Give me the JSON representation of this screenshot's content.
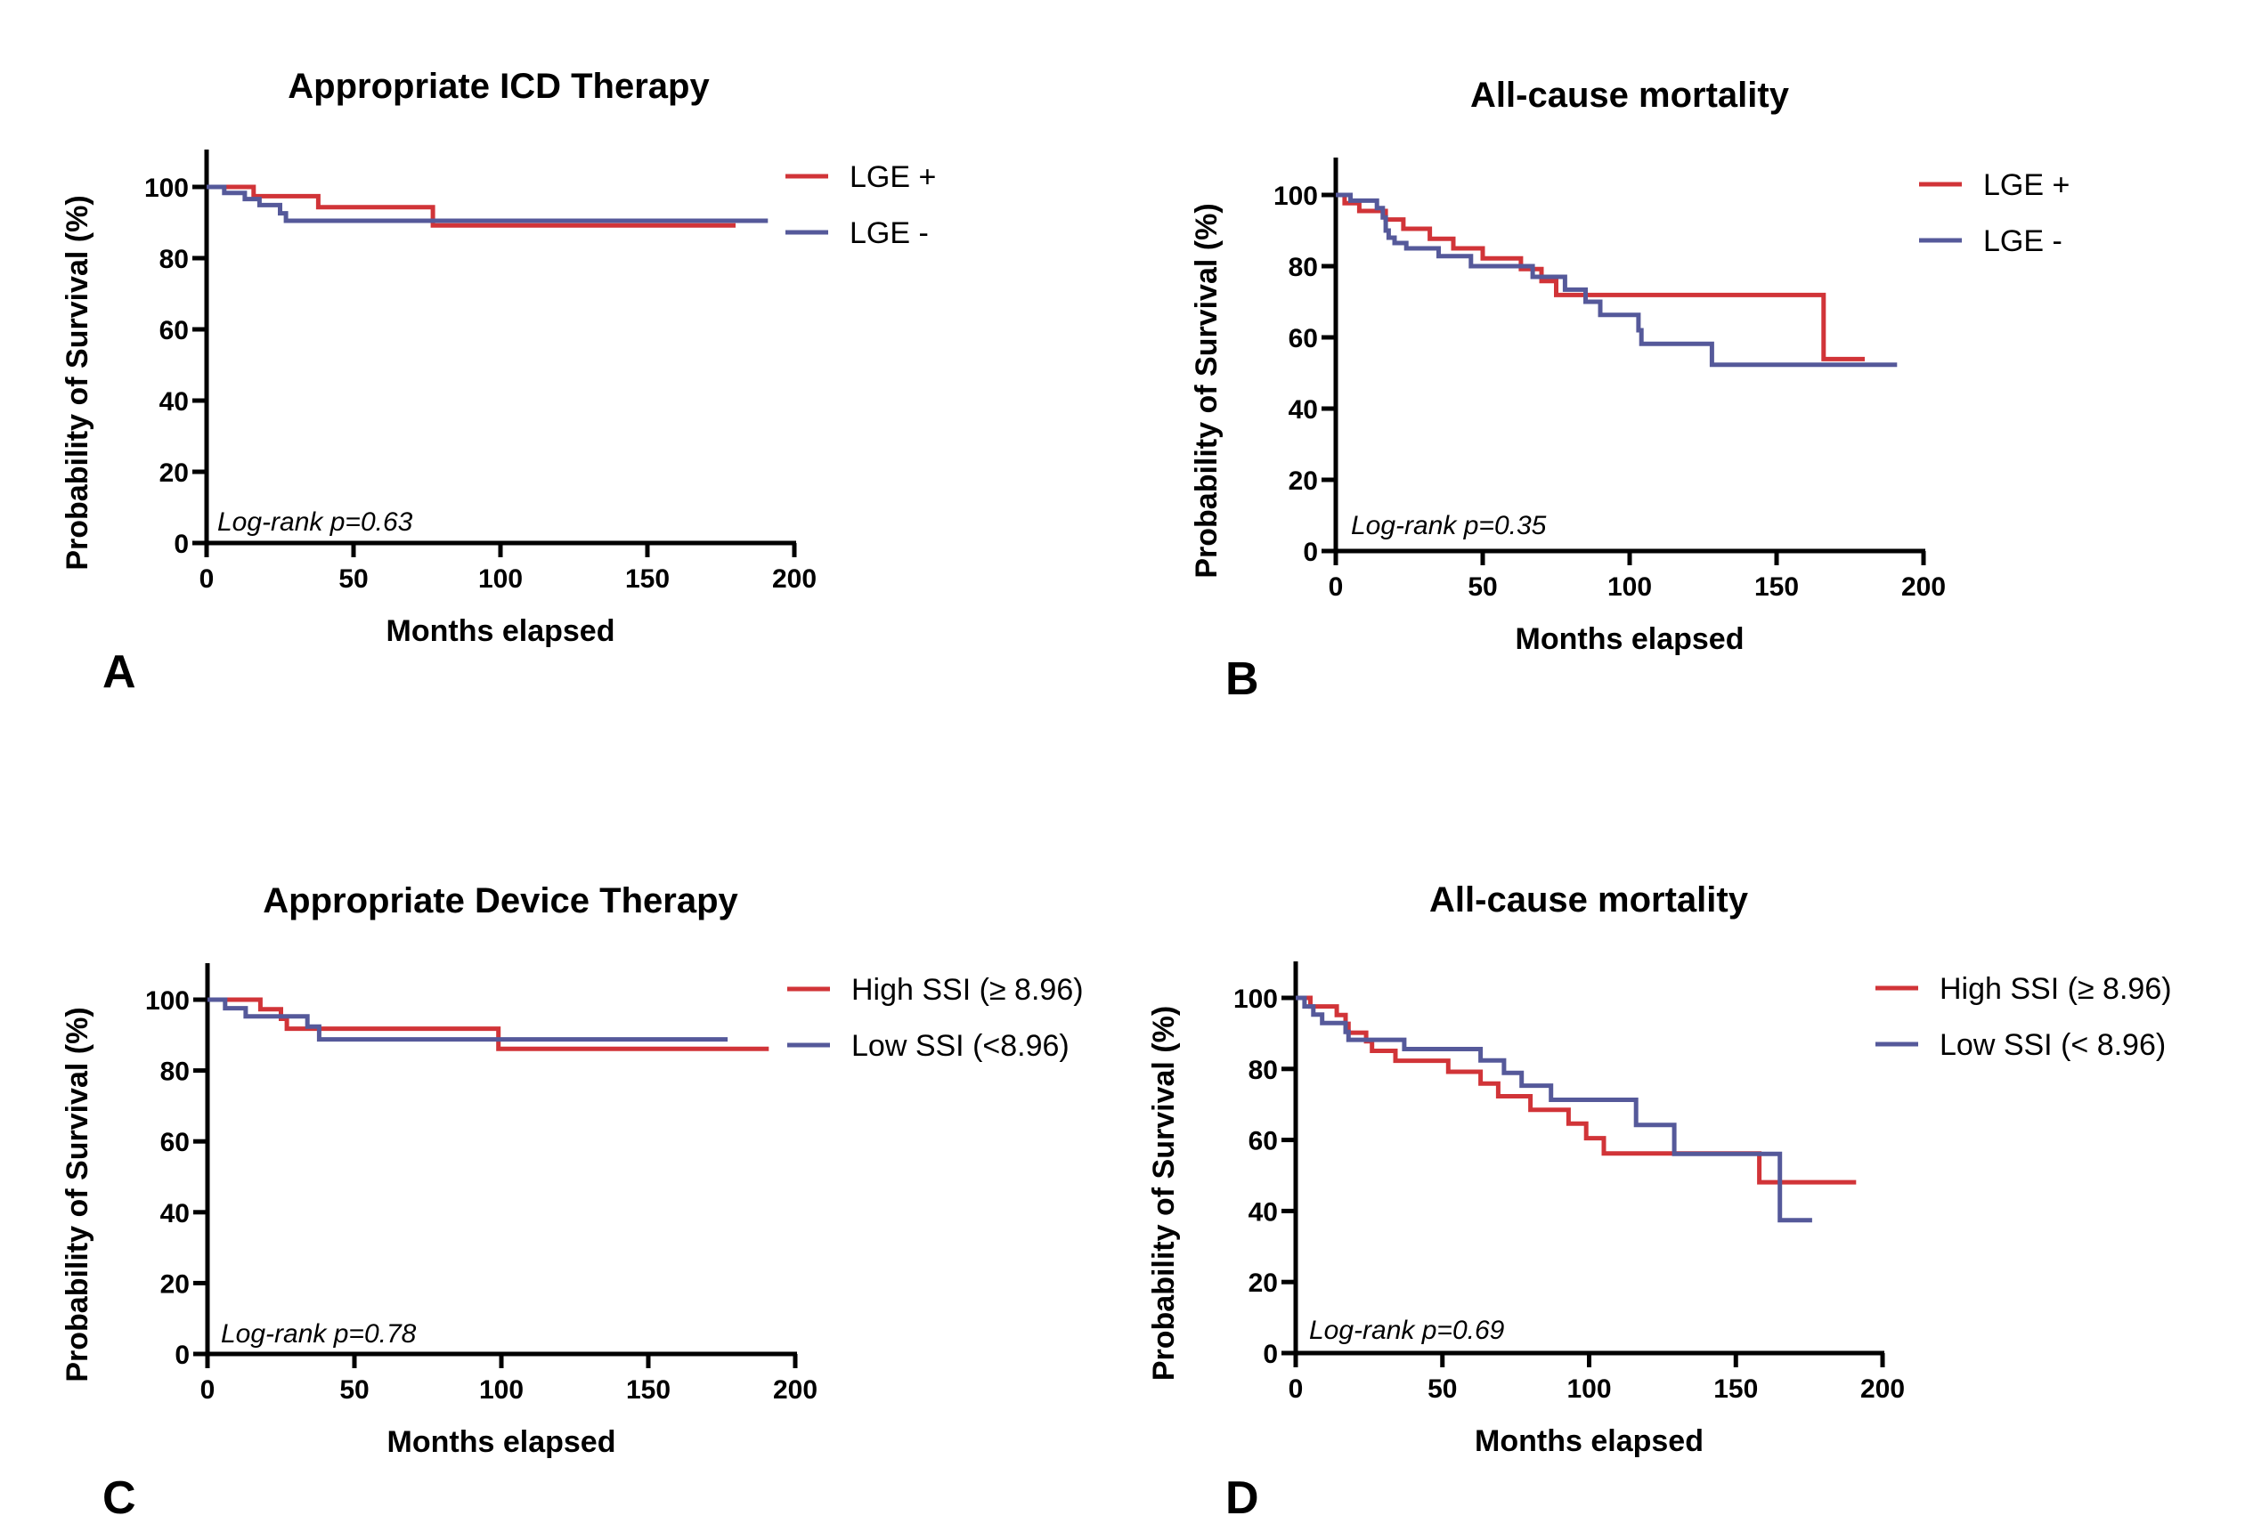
{
  "colors": {
    "red": "#d13438",
    "blue": "#55599a",
    "axis": "#000000"
  },
  "chart_data": [
    {
      "id": "A",
      "type": "line",
      "subtype": "kaplan-meier-step",
      "panel_letter": "A",
      "title": "Appropriate ICD Therapy",
      "xlabel": "Months elapsed",
      "ylabel": "Probability of Survival (%)",
      "xlim": [
        0,
        200
      ],
      "ylim": [
        0,
        110
      ],
      "xticks": [
        0,
        50,
        100,
        150,
        200
      ],
      "yticks": [
        0,
        20,
        40,
        60,
        80,
        100
      ],
      "grid": false,
      "legend_position": "top-right",
      "annotation": "Log-rank p=0.63",
      "series": [
        {
          "name": "LGE +",
          "color": "#d13438",
          "steps": [
            [
              0,
              100
            ],
            [
              16,
              100
            ],
            [
              16,
              97.4
            ],
            [
              38,
              97.4
            ],
            [
              38,
              94.3
            ],
            [
              77,
              94.3
            ],
            [
              77,
              89.2
            ],
            [
              180,
              89.2
            ]
          ]
        },
        {
          "name": "LGE -",
          "color": "#55599a",
          "steps": [
            [
              0,
              100
            ],
            [
              6,
              100
            ],
            [
              6,
              98.3
            ],
            [
              13,
              98.3
            ],
            [
              13,
              96.6
            ],
            [
              18,
              96.6
            ],
            [
              18,
              94.9
            ],
            [
              25,
              94.9
            ],
            [
              25,
              92.6
            ],
            [
              27,
              92.6
            ],
            [
              27,
              90.5
            ],
            [
              191,
              90.5
            ]
          ]
        }
      ]
    },
    {
      "id": "B",
      "type": "line",
      "subtype": "kaplan-meier-step",
      "panel_letter": "B",
      "title": "All-cause mortality",
      "xlabel": "Months elapsed",
      "ylabel": "Probability of Survival (%)",
      "xlim": [
        0,
        200
      ],
      "ylim": [
        0,
        110
      ],
      "xticks": [
        0,
        50,
        100,
        150,
        200
      ],
      "yticks": [
        0,
        20,
        40,
        60,
        80,
        100
      ],
      "grid": false,
      "legend_position": "top-right",
      "annotation": "Log-rank p=0.35",
      "series": [
        {
          "name": "LGE +",
          "color": "#d13438",
          "steps": [
            [
              0,
              100
            ],
            [
              3,
              100
            ],
            [
              3,
              97.7
            ],
            [
              8,
              97.7
            ],
            [
              8,
              95.5
            ],
            [
              17,
              95.5
            ],
            [
              17,
              93.1
            ],
            [
              23,
              93.1
            ],
            [
              23,
              90.5
            ],
            [
              32,
              90.5
            ],
            [
              32,
              87.7
            ],
            [
              40,
              87.7
            ],
            [
              40,
              85
            ],
            [
              50,
              85
            ],
            [
              50,
              82.2
            ],
            [
              63,
              82.2
            ],
            [
              63,
              79.2
            ],
            [
              70,
              79.2
            ],
            [
              70,
              75.8
            ],
            [
              75,
              75.8
            ],
            [
              75,
              71.9
            ],
            [
              166,
              71.9
            ],
            [
              166,
              53.9
            ],
            [
              180,
              53.9
            ]
          ]
        },
        {
          "name": "LGE -",
          "color": "#55599a",
          "steps": [
            [
              0,
              100
            ],
            [
              5,
              100
            ],
            [
              5,
              98.4
            ],
            [
              14,
              98.4
            ],
            [
              14,
              96.3
            ],
            [
              16,
              96.3
            ],
            [
              16,
              93.7
            ],
            [
              17,
              93.7
            ],
            [
              17,
              90
            ],
            [
              18,
              90
            ],
            [
              18,
              88
            ],
            [
              20,
              88
            ],
            [
              20,
              86.5
            ],
            [
              24,
              86.5
            ],
            [
              24,
              85
            ],
            [
              35,
              85
            ],
            [
              35,
              82.8
            ],
            [
              46,
              82.8
            ],
            [
              46,
              80
            ],
            [
              67,
              80
            ],
            [
              67,
              77
            ],
            [
              78,
              77
            ],
            [
              78,
              73.4
            ],
            [
              85,
              73.4
            ],
            [
              85,
              70
            ],
            [
              90,
              70
            ],
            [
              90,
              66.3
            ],
            [
              103,
              66.3
            ],
            [
              103,
              62
            ],
            [
              104,
              62
            ],
            [
              104,
              58.2
            ],
            [
              128,
              58.2
            ],
            [
              128,
              52.3
            ],
            [
              191,
              52.3
            ]
          ]
        }
      ]
    },
    {
      "id": "C",
      "type": "line",
      "subtype": "kaplan-meier-step",
      "panel_letter": "C",
      "title": "Appropriate Device Therapy",
      "xlabel": "Months elapsed",
      "ylabel": "Probability of Survival (%)",
      "xlim": [
        0,
        200
      ],
      "ylim": [
        0,
        110
      ],
      "xticks": [
        0,
        50,
        100,
        150,
        200
      ],
      "yticks": [
        0,
        20,
        40,
        60,
        80,
        100
      ],
      "grid": false,
      "legend_position": "top-right",
      "annotation": "Log-rank p=0.78",
      "series": [
        {
          "name": "High SSI (≥ 8.96)",
          "color": "#d13438",
          "steps": [
            [
              0,
              100
            ],
            [
              18,
              100
            ],
            [
              18,
              97.3
            ],
            [
              25,
              97.3
            ],
            [
              25,
              94.6
            ],
            [
              27,
              94.6
            ],
            [
              27,
              91.8
            ],
            [
              99,
              91.8
            ],
            [
              99,
              86.1
            ],
            [
              191,
              86.1
            ]
          ]
        },
        {
          "name": "Low SSI (<8.96)",
          "color": "#55599a",
          "steps": [
            [
              0,
              100
            ],
            [
              6,
              100
            ],
            [
              6,
              97.6
            ],
            [
              13,
              97.6
            ],
            [
              13,
              95.3
            ],
            [
              34,
              95.3
            ],
            [
              34,
              92.4
            ],
            [
              38,
              92.4
            ],
            [
              38,
              88.8
            ],
            [
              177,
              88.8
            ]
          ]
        }
      ]
    },
    {
      "id": "D",
      "type": "line",
      "subtype": "kaplan-meier-step",
      "panel_letter": "D",
      "title": "All-cause mortality",
      "xlabel": "Months elapsed",
      "ylabel": "Probability of Survival (%)",
      "xlim": [
        0,
        200
      ],
      "ylim": [
        0,
        110
      ],
      "xticks": [
        0,
        50,
        100,
        150,
        200
      ],
      "yticks": [
        0,
        20,
        40,
        60,
        80,
        100
      ],
      "grid": false,
      "legend_position": "top-right",
      "annotation": "Log-rank p=0.69",
      "series": [
        {
          "name": "High SSI (≥ 8.96)",
          "color": "#d13438",
          "steps": [
            [
              0,
              100
            ],
            [
              5,
              100
            ],
            [
              5,
              97.6
            ],
            [
              14,
              97.6
            ],
            [
              14,
              95.2
            ],
            [
              17,
              95.2
            ],
            [
              17,
              92.7
            ],
            [
              18,
              92.7
            ],
            [
              18,
              90.2
            ],
            [
              24,
              90.2
            ],
            [
              24,
              87.8
            ],
            [
              26,
              87.8
            ],
            [
              26,
              85.1
            ],
            [
              34,
              85.1
            ],
            [
              34,
              82.3
            ],
            [
              52,
              82.3
            ],
            [
              52,
              79.2
            ],
            [
              63,
              79.2
            ],
            [
              63,
              75.9
            ],
            [
              69,
              75.9
            ],
            [
              69,
              72.3
            ],
            [
              80,
              72.3
            ],
            [
              80,
              68.5
            ],
            [
              93,
              68.5
            ],
            [
              93,
              64.6
            ],
            [
              99,
              64.6
            ],
            [
              99,
              60.5
            ],
            [
              105,
              60.5
            ],
            [
              105,
              56.2
            ],
            [
              158,
              56.2
            ],
            [
              158,
              48.1
            ],
            [
              191,
              48.1
            ]
          ]
        },
        {
          "name": "Low SSI (< 8.96)",
          "color": "#55599a",
          "steps": [
            [
              0,
              100
            ],
            [
              3,
              100
            ],
            [
              3,
              97.6
            ],
            [
              6,
              97.6
            ],
            [
              6,
              95.3
            ],
            [
              9,
              95.3
            ],
            [
              9,
              92.9
            ],
            [
              17,
              92.9
            ],
            [
              17,
              90.4
            ],
            [
              18,
              90.4
            ],
            [
              18,
              88.2
            ],
            [
              37,
              88.2
            ],
            [
              37,
              85.6
            ],
            [
              63,
              85.6
            ],
            [
              63,
              82.4
            ],
            [
              71,
              82.4
            ],
            [
              71,
              78.9
            ],
            [
              77,
              78.9
            ],
            [
              77,
              75.3
            ],
            [
              87,
              75.3
            ],
            [
              87,
              71.3
            ],
            [
              116,
              71.3
            ],
            [
              116,
              64.2
            ],
            [
              129,
              64.2
            ],
            [
              129,
              56.1
            ],
            [
              165,
              56.1
            ],
            [
              165,
              37.4
            ],
            [
              176,
              37.4
            ]
          ]
        }
      ]
    }
  ]
}
